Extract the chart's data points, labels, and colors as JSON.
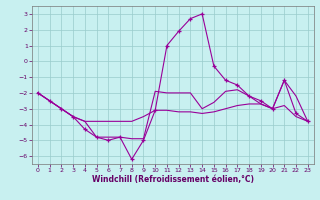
{
  "xlabel": "Windchill (Refroidissement éolien,°C)",
  "xlim": [
    -0.5,
    23.5
  ],
  "ylim": [
    -6.5,
    3.5
  ],
  "yticks": [
    -6,
    -5,
    -4,
    -3,
    -2,
    -1,
    0,
    1,
    2,
    3
  ],
  "xticks": [
    0,
    1,
    2,
    3,
    4,
    5,
    6,
    7,
    8,
    9,
    10,
    11,
    12,
    13,
    14,
    15,
    16,
    17,
    18,
    19,
    20,
    21,
    22,
    23
  ],
  "bg_color": "#c8f0f0",
  "grid_color": "#99cccc",
  "line_color": "#990099",
  "line1_x": [
    0,
    1,
    2,
    3,
    4,
    5,
    6,
    7,
    8,
    9,
    10,
    11,
    12,
    13,
    14,
    15,
    16,
    17,
    18,
    19,
    20,
    21,
    22,
    23
  ],
  "line1_y": [
    -2.0,
    -2.5,
    -3.0,
    -3.5,
    -4.3,
    -4.8,
    -5.0,
    -4.8,
    -6.2,
    -5.0,
    -3.1,
    1.0,
    1.9,
    2.7,
    3.0,
    -0.3,
    -1.2,
    -1.5,
    -2.2,
    -2.5,
    -3.0,
    -1.2,
    -3.3,
    -3.8
  ],
  "line2_x": [
    0,
    1,
    2,
    3,
    4,
    5,
    6,
    7,
    8,
    9,
    10,
    11,
    12,
    13,
    14,
    15,
    16,
    17,
    18,
    19,
    20,
    21,
    22,
    23
  ],
  "line2_y": [
    -2.0,
    -2.5,
    -3.0,
    -3.5,
    -3.8,
    -3.8,
    -3.8,
    -3.8,
    -3.8,
    -3.5,
    -3.1,
    -3.1,
    -3.2,
    -3.2,
    -3.3,
    -3.2,
    -3.0,
    -2.8,
    -2.7,
    -2.7,
    -3.0,
    -2.8,
    -3.5,
    -3.8
  ],
  "line3_x": [
    0,
    1,
    2,
    3,
    4,
    5,
    6,
    7,
    8,
    9,
    10,
    11,
    12,
    13,
    14,
    15,
    16,
    17,
    18,
    19,
    20,
    21,
    22,
    23
  ],
  "line3_y": [
    -2.0,
    -2.5,
    -3.0,
    -3.5,
    -3.8,
    -4.8,
    -4.8,
    -4.8,
    -4.9,
    -4.9,
    -1.9,
    -2.0,
    -2.0,
    -2.0,
    -3.0,
    -2.6,
    -1.9,
    -1.8,
    -2.2,
    -2.7,
    -3.0,
    -1.2,
    -2.2,
    -3.8
  ]
}
